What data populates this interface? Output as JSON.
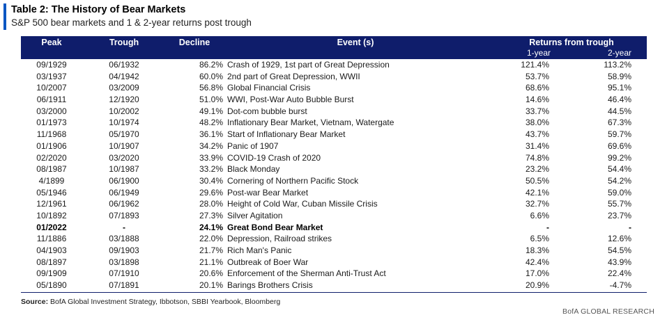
{
  "title": "Table 2: The History of Bear Markets",
  "subtitle": "S&P 500 bear markets and 1 & 2-year returns post trough",
  "headers": {
    "peak": "Peak",
    "trough": "Trough",
    "decline": "Decline",
    "event": "Event (s)",
    "returns": "Returns from trough",
    "r1": "1-year",
    "r2": "2-year"
  },
  "rows": [
    {
      "peak": "09/1929",
      "trough": "06/1932",
      "decline": "86.2%",
      "event": "Crash of 1929, 1st part of Great Depression",
      "r1": "121.4%",
      "r2": "113.2%"
    },
    {
      "peak": "03/1937",
      "trough": "04/1942",
      "decline": "60.0%",
      "event": "2nd part of Great Depression, WWII",
      "r1": "53.7%",
      "r2": "58.9%"
    },
    {
      "peak": "10/2007",
      "trough": "03/2009",
      "decline": "56.8%",
      "event": "Global Financial Crisis",
      "r1": "68.6%",
      "r2": "95.1%"
    },
    {
      "peak": "06/1911",
      "trough": "12/1920",
      "decline": "51.0%",
      "event": "WWI, Post-War Auto Bubble Burst",
      "r1": "14.6%",
      "r2": "46.4%"
    },
    {
      "peak": "03/2000",
      "trough": "10/2002",
      "decline": "49.1%",
      "event": "Dot-com bubble burst",
      "r1": "33.7%",
      "r2": "44.5%"
    },
    {
      "peak": "01/1973",
      "trough": "10/1974",
      "decline": "48.2%",
      "event": "Inflationary Bear Market, Vietnam, Watergate",
      "r1": "38.0%",
      "r2": "67.3%"
    },
    {
      "peak": "11/1968",
      "trough": "05/1970",
      "decline": "36.1%",
      "event": "Start of Inflationary Bear Market",
      "r1": "43.7%",
      "r2": "59.7%"
    },
    {
      "peak": "01/1906",
      "trough": "10/1907",
      "decline": "34.2%",
      "event": "Panic of 1907",
      "r1": "31.4%",
      "r2": "69.6%"
    },
    {
      "peak": "02/2020",
      "trough": "03/2020",
      "decline": "33.9%",
      "event": "COVID-19 Crash of 2020",
      "r1": "74.8%",
      "r2": "99.2%"
    },
    {
      "peak": "08/1987",
      "trough": "10/1987",
      "decline": "33.2%",
      "event": "Black Monday",
      "r1": "23.2%",
      "r2": "54.4%"
    },
    {
      "peak": "4/1899",
      "trough": "06/1900",
      "decline": "30.4%",
      "event": "Cornering of Northern Pacific Stock",
      "r1": "50.5%",
      "r2": "54.2%"
    },
    {
      "peak": "05/1946",
      "trough": "06/1949",
      "decline": "29.6%",
      "event": "Post-war Bear Market",
      "r1": "42.1%",
      "r2": "59.0%"
    },
    {
      "peak": "12/1961",
      "trough": "06/1962",
      "decline": "28.0%",
      "event": "Height of Cold War, Cuban Missile Crisis",
      "r1": "32.7%",
      "r2": "55.7%"
    },
    {
      "peak": "10/1892",
      "trough": "07/1893",
      "decline": "27.3%",
      "event": "Silver Agitation",
      "r1": "6.6%",
      "r2": "23.7%"
    },
    {
      "peak": "01/2022",
      "trough": "-",
      "decline": "24.1%",
      "event": "Great Bond Bear Market",
      "r1": "-",
      "r2": "-",
      "bold": true
    },
    {
      "peak": "11/1886",
      "trough": "03/1888",
      "decline": "22.0%",
      "event": "Depression, Railroad strikes",
      "r1": "6.5%",
      "r2": "12.6%"
    },
    {
      "peak": "04/1903",
      "trough": "09/1903",
      "decline": "21.7%",
      "event": "Rich Man's Panic",
      "r1": "18.3%",
      "r2": "54.5%"
    },
    {
      "peak": "08/1897",
      "trough": "03/1898",
      "decline": "21.1%",
      "event": "Outbreak of Boer War",
      "r1": "42.4%",
      "r2": "43.9%"
    },
    {
      "peak": "09/1909",
      "trough": "07/1910",
      "decline": "20.6%",
      "event": "Enforcement of the Sherman Anti-Trust Act",
      "r1": "17.0%",
      "r2": "22.4%"
    },
    {
      "peak": "05/1890",
      "trough": "07/1891",
      "decline": "20.1%",
      "event": "Barings Brothers Crisis",
      "r1": "20.9%",
      "r2": "-4.7%"
    }
  ],
  "source_label": "Source:",
  "source_text": " BofA Global Investment Strategy, Ibbotson, SBBI Yearbook, Bloomberg",
  "brand": "BofA GLOBAL RESEARCH",
  "colors": {
    "header_bg": "#0f1d6b",
    "accent": "#0a57c3"
  }
}
